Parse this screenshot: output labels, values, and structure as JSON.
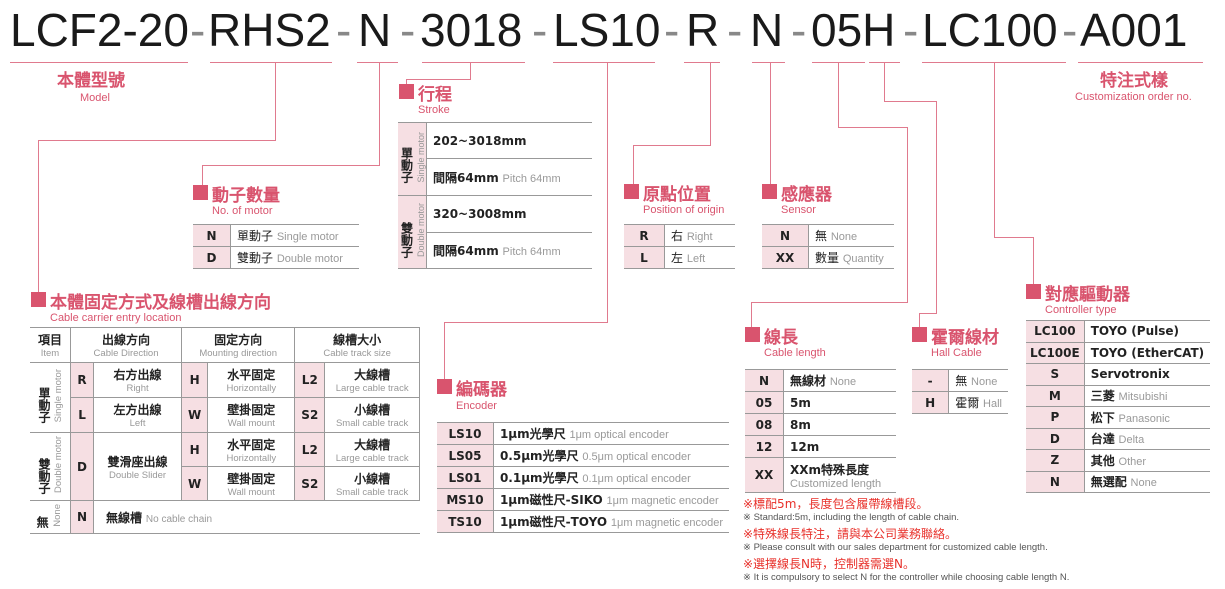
{
  "code": {
    "segments": [
      "LCF2-20",
      "RHS2",
      "N",
      "3018",
      "LS10",
      "R",
      "N",
      "05H",
      "LC100",
      "A001"
    ],
    "separator": "-"
  },
  "colors": {
    "accent": "#d9546e",
    "cell_bg": "#f6dfe3",
    "note_red": "#e8302a"
  },
  "model": {
    "zh": "本體型號",
    "en": "Model"
  },
  "custom": {
    "zh": "特注式樣",
    "en": "Customization order no."
  },
  "stroke": {
    "zh": "行程",
    "en": "Stroke",
    "single": {
      "zh": "單動子",
      "en": "Single motor",
      "range": "202~3018mm",
      "pitch_zh": "間隔64mm",
      "pitch_en": "Pitch 64mm"
    },
    "double": {
      "zh": "雙動子",
      "en": "Double motor",
      "range": "320~3008mm",
      "pitch_zh": "間隔64mm",
      "pitch_en": "Pitch 64mm"
    }
  },
  "motor": {
    "zh": "動子數量",
    "en": "No. of motor",
    "rows": [
      {
        "code": "N",
        "zh": "單動子",
        "en": "Single motor"
      },
      {
        "code": "D",
        "zh": "雙動子",
        "en": "Double motor"
      }
    ]
  },
  "origin": {
    "zh": "原點位置",
    "en": "Position of origin",
    "rows": [
      {
        "code": "R",
        "zh": "右",
        "en": "Right"
      },
      {
        "code": "L",
        "zh": "左",
        "en": "Left"
      }
    ]
  },
  "sensor": {
    "zh": "感應器",
    "en": "Sensor",
    "rows": [
      {
        "code": "N",
        "zh": "無",
        "en": "None"
      },
      {
        "code": "XX",
        "zh": "數量",
        "en": "Quantity"
      }
    ]
  },
  "encoder": {
    "zh": "編碼器",
    "en": "Encoder",
    "rows": [
      {
        "code": "LS10",
        "zh": "1μm光學尺",
        "en": "1μm optical encoder"
      },
      {
        "code": "LS05",
        "zh": "0.5μm光學尺",
        "en": "0.5μm optical encoder"
      },
      {
        "code": "LS01",
        "zh": "0.1μm光學尺",
        "en": "0.1μm optical encoder"
      },
      {
        "code": "MS10",
        "zh": "1μm磁性尺-SIKO",
        "en": "1μm magnetic encoder"
      },
      {
        "code": "TS10",
        "zh": "1μm磁性尺-TOYO",
        "en": "1μm magnetic encoder"
      }
    ]
  },
  "cable_length": {
    "zh": "線長",
    "en": "Cable length",
    "rows": [
      {
        "code": "N",
        "zh": "無線材",
        "en": "None"
      },
      {
        "code": "05",
        "zh": "5m",
        "en": ""
      },
      {
        "code": "08",
        "zh": "8m",
        "en": ""
      },
      {
        "code": "12",
        "zh": "12m",
        "en": ""
      },
      {
        "code": "XX",
        "zh": "XXm特殊長度",
        "en": "Customized length"
      }
    ]
  },
  "hall": {
    "zh": "霍爾線材",
    "en": "Hall Cable",
    "rows": [
      {
        "code": "-",
        "zh": "無",
        "en": "None"
      },
      {
        "code": "H",
        "zh": "霍爾",
        "en": "Hall"
      }
    ]
  },
  "controller": {
    "zh": "對應驅動器",
    "en": "Controller type",
    "rows": [
      {
        "code": "LC100",
        "zh": "TOYO (Pulse)",
        "en": ""
      },
      {
        "code": "LC100E",
        "zh": "TOYO (EtherCAT)",
        "en": ""
      },
      {
        "code": "S",
        "zh": "Servotronix",
        "en": ""
      },
      {
        "code": "M",
        "zh": "三菱",
        "en": "Mitsubishi"
      },
      {
        "code": "P",
        "zh": "松下",
        "en": "Panasonic"
      },
      {
        "code": "D",
        "zh": "台達",
        "en": "Delta"
      },
      {
        "code": "Z",
        "zh": "其他",
        "en": "Other"
      },
      {
        "code": "N",
        "zh": "無選配",
        "en": "None"
      }
    ]
  },
  "carrier": {
    "zh": "本體固定方式及線槽出線方向",
    "en": "Cable carrier entry location",
    "headers": {
      "item_zh": "項目",
      "item_en": "Item",
      "dir_zh": "出線方向",
      "dir_en": "Cable Direction",
      "mount_zh": "固定方向",
      "mount_en": "Mounting direction",
      "size_zh": "線槽大小",
      "size_en": "Cable track size"
    },
    "single": {
      "zh": "單動子",
      "en": "Single motor"
    },
    "double": {
      "zh": "雙動子",
      "en": "Double motor"
    },
    "none": {
      "zh": "無",
      "en": "None"
    },
    "R": {
      "code": "R",
      "zh": "右方出線",
      "en": "Right"
    },
    "L": {
      "code": "L",
      "zh": "左方出線",
      "en": "Left"
    },
    "D": {
      "code": "D",
      "zh": "雙滑座出線",
      "en": "Double Slider"
    },
    "H": {
      "code": "H",
      "zh": "水平固定",
      "en": "Horizontally"
    },
    "W": {
      "code": "W",
      "zh": "壁掛固定",
      "en": "Wall mount"
    },
    "L2": {
      "code": "L2",
      "zh": "大線槽",
      "en": "Large cable track"
    },
    "S2": {
      "code": "S2",
      "zh": "小線槽",
      "en": "Small cable track"
    },
    "N": {
      "code": "N",
      "zh": "無線槽",
      "en": "No cable chain"
    }
  },
  "notes": [
    {
      "zh": "※標配5m，長度包含履帶線槽段。",
      "en": "※ Standard:5m, including the length of cable chain."
    },
    {
      "zh": "※特殊線長特注，請與本公司業務聯絡。",
      "en": "※ Please consult with our sales department for customized cable length."
    },
    {
      "zh": "※選擇線長N時，控制器需選N。",
      "en": "※ It is compulsory to select N for the controller while choosing cable length N."
    }
  ]
}
